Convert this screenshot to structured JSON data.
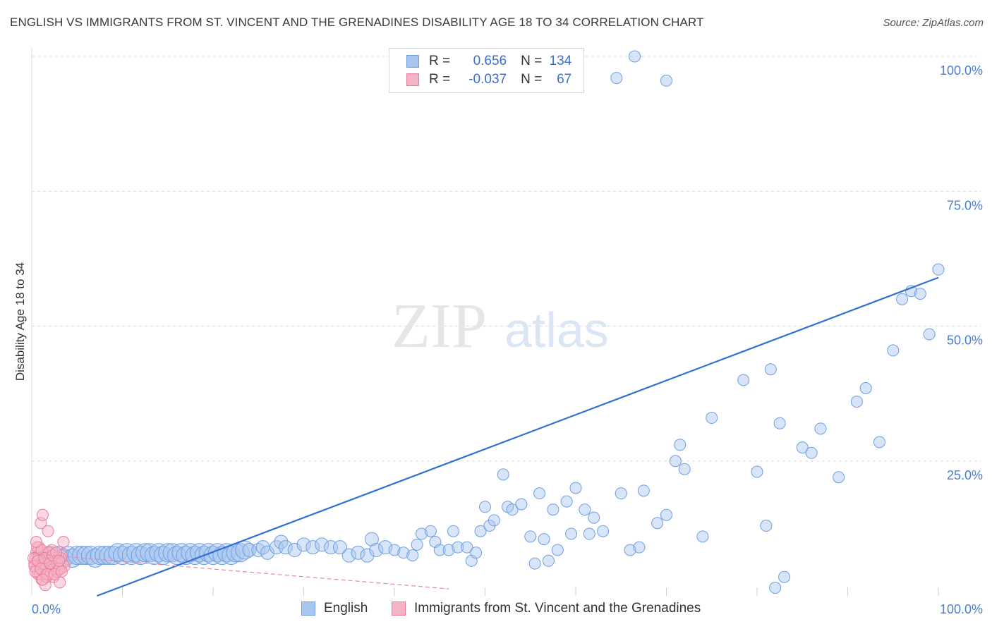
{
  "header": {
    "title": "ENGLISH VS IMMIGRANTS FROM ST. VINCENT AND THE GRENADINES DISABILITY AGE 18 TO 34 CORRELATION CHART",
    "source": "Source: ZipAtlas.com"
  },
  "watermark": {
    "zip": "ZIP",
    "atlas": "atlas"
  },
  "legend": {
    "rows": [
      {
        "r_label": "R =",
        "r_value": "0.656",
        "n_label": "N =",
        "n_value": "134"
      },
      {
        "r_label": "R =",
        "r_value": "-0.037",
        "n_label": "N =",
        "n_value": "67"
      }
    ]
  },
  "bottom_legend": {
    "english": "English",
    "immigrants": "Immigrants from St. Vincent and the Grenadines"
  },
  "colors": {
    "english_fill": "#a9c6f0",
    "english_stroke": "#6f9fe0",
    "english_line": "#3070d0",
    "immigrant_fill": "#f6b3c6",
    "immigrant_stroke": "#ea7da0",
    "immigrant_line": "#e08aa5",
    "tick_text": "#4a7fd0",
    "grid": "#dcdcdc"
  },
  "chart_data": {
    "type": "scatter",
    "title": "ENGLISH VS IMMIGRANTS FROM ST. VINCENT AND THE GRENADINES DISABILITY AGE 18 TO 34 CORRELATION CHART",
    "xlabel": "",
    "ylabel": "Disability Age 18 to 34",
    "xlim": [
      0,
      100
    ],
    "ylim": [
      0,
      100
    ],
    "x_tick_labels": [
      "0.0%",
      "100.0%"
    ],
    "y_tick_labels": [
      "25.0%",
      "50.0%",
      "75.0%",
      "100.0%"
    ],
    "y_ticks": [
      25,
      50,
      75,
      100
    ],
    "grid": true,
    "legend_placement": "top-center",
    "series": [
      {
        "name": "English",
        "r": 0.656,
        "n": 134,
        "trend": {
          "x": [
            7.2,
            100
          ],
          "y": [
            0,
            59
          ]
        },
        "points": [
          [
            1.5,
            7
          ],
          [
            2,
            7.5
          ],
          [
            2.5,
            7
          ],
          [
            3,
            7.5
          ],
          [
            3.5,
            7
          ],
          [
            4,
            7.5
          ],
          [
            4.5,
            7
          ],
          [
            5,
            7.5
          ],
          [
            5.5,
            7.5
          ],
          [
            6,
            7.5
          ],
          [
            6.5,
            7.5
          ],
          [
            7,
            7
          ],
          [
            7.5,
            7.5
          ],
          [
            8,
            7.5
          ],
          [
            8.5,
            7.5
          ],
          [
            9,
            7.5
          ],
          [
            9.5,
            8
          ],
          [
            10,
            7.5
          ],
          [
            10.5,
            8
          ],
          [
            11,
            7.5
          ],
          [
            11.5,
            8
          ],
          [
            12,
            7.5
          ],
          [
            12.5,
            8
          ],
          [
            13,
            8
          ],
          [
            13.5,
            7.5
          ],
          [
            14,
            8
          ],
          [
            14.5,
            7.5
          ],
          [
            15,
            8
          ],
          [
            15.5,
            8
          ],
          [
            16,
            7.5
          ],
          [
            16.5,
            8
          ],
          [
            17,
            7.5
          ],
          [
            17.5,
            8
          ],
          [
            18,
            7.5
          ],
          [
            18.5,
            8
          ],
          [
            19,
            7.5
          ],
          [
            19.5,
            8
          ],
          [
            20,
            7.5
          ],
          [
            20.5,
            8
          ],
          [
            21,
            7.5
          ],
          [
            21.5,
            8
          ],
          [
            22,
            7.5
          ],
          [
            22.5,
            8
          ],
          [
            23,
            8
          ],
          [
            23.5,
            8.5
          ],
          [
            24,
            8.5
          ],
          [
            25,
            8.5
          ],
          [
            25.5,
            9
          ],
          [
            26,
            8
          ],
          [
            27,
            9
          ],
          [
            27.5,
            10
          ],
          [
            28,
            9
          ],
          [
            29,
            8.5
          ],
          [
            30,
            9.5
          ],
          [
            31,
            9
          ],
          [
            32,
            9.5
          ],
          [
            33,
            9
          ],
          [
            34,
            9
          ],
          [
            35,
            7.5
          ],
          [
            36,
            8
          ],
          [
            37,
            7.5
          ],
          [
            37.5,
            10.5
          ],
          [
            38,
            8.5
          ],
          [
            39,
            9
          ],
          [
            40,
            8.5
          ],
          [
            41,
            8
          ],
          [
            42,
            7.5
          ],
          [
            42.5,
            9.5
          ],
          [
            43,
            11.5
          ],
          [
            44,
            12
          ],
          [
            44.5,
            10
          ],
          [
            45,
            8.5
          ],
          [
            46,
            8.5
          ],
          [
            46.5,
            12
          ],
          [
            47,
            9
          ],
          [
            48,
            9
          ],
          [
            48.5,
            6.5
          ],
          [
            49,
            8
          ],
          [
            49.5,
            12
          ],
          [
            50,
            16.5
          ],
          [
            50.5,
            13
          ],
          [
            51,
            14
          ],
          [
            52,
            22.5
          ],
          [
            52.5,
            16.5
          ],
          [
            53,
            16
          ],
          [
            54,
            17
          ],
          [
            55,
            11
          ],
          [
            55.5,
            6
          ],
          [
            56,
            19
          ],
          [
            56.5,
            10.5
          ],
          [
            57,
            6.5
          ],
          [
            57.5,
            16
          ],
          [
            58,
            8.5
          ],
          [
            59,
            17.5
          ],
          [
            59.5,
            11.5
          ],
          [
            60,
            20
          ],
          [
            61,
            16
          ],
          [
            61.5,
            11.5
          ],
          [
            62,
            14.5
          ],
          [
            63,
            12
          ],
          [
            65,
            19
          ],
          [
            66,
            8.5
          ],
          [
            67,
            9
          ],
          [
            67.5,
            19.5
          ],
          [
            69,
            13.5
          ],
          [
            70,
            15
          ],
          [
            71,
            25
          ],
          [
            72,
            23.5
          ],
          [
            74,
            11
          ],
          [
            75,
            33
          ],
          [
            78.5,
            40
          ],
          [
            80,
            23
          ],
          [
            81,
            13
          ],
          [
            81.5,
            42
          ],
          [
            82,
            1.5
          ],
          [
            82.5,
            32
          ],
          [
            83,
            3.5
          ],
          [
            85,
            27.5
          ],
          [
            86,
            26.5
          ],
          [
            87,
            31
          ],
          [
            89,
            22
          ],
          [
            91,
            36
          ],
          [
            92,
            38.5
          ],
          [
            93.5,
            28.5
          ],
          [
            95,
            45.5
          ],
          [
            96,
            55
          ],
          [
            97,
            56.5
          ],
          [
            98,
            56
          ],
          [
            99,
            48.5
          ],
          [
            100,
            60.5
          ],
          [
            71.5,
            28
          ],
          [
            64.5,
            96
          ],
          [
            66.5,
            100
          ],
          [
            70,
            95.5
          ]
        ]
      },
      {
        "name": "Immigrants from St. Vincent and the Grenadines",
        "r": -0.037,
        "n": 67,
        "trend": {
          "x": [
            0,
            46
          ],
          "y": [
            7.8,
            1.3
          ]
        },
        "points": [
          [
            0.3,
            6
          ],
          [
            0.4,
            7
          ],
          [
            0.5,
            5
          ],
          [
            0.5,
            8
          ],
          [
            0.6,
            6.5
          ],
          [
            0.7,
            4
          ],
          [
            0.8,
            7.5
          ],
          [
            0.8,
            9
          ],
          [
            0.9,
            5.5
          ],
          [
            1,
            6
          ],
          [
            1,
            13.5
          ],
          [
            1.1,
            3
          ],
          [
            1.2,
            7
          ],
          [
            1.2,
            15
          ],
          [
            1.3,
            4.5
          ],
          [
            1.4,
            8
          ],
          [
            1.5,
            6
          ],
          [
            1.5,
            2
          ],
          [
            1.6,
            5.5
          ],
          [
            1.7,
            7
          ],
          [
            1.8,
            12
          ],
          [
            1.9,
            6.5
          ],
          [
            2,
            4
          ],
          [
            2,
            7.5
          ],
          [
            2.1,
            5
          ],
          [
            2.2,
            8.5
          ],
          [
            2.3,
            6
          ],
          [
            2.4,
            3.5
          ],
          [
            2.5,
            7
          ],
          [
            2.6,
            5.5
          ],
          [
            2.7,
            6.5
          ],
          [
            2.8,
            4.5
          ],
          [
            2.9,
            7
          ],
          [
            3,
            6
          ],
          [
            3.1,
            2.5
          ],
          [
            3.2,
            5
          ],
          [
            3.3,
            7.5
          ],
          [
            3.4,
            6
          ],
          [
            3.5,
            10
          ],
          [
            3.6,
            5.5
          ],
          [
            0.2,
            7
          ],
          [
            0.3,
            5.5
          ],
          [
            0.6,
            9
          ],
          [
            0.9,
            4
          ],
          [
            1.1,
            8.5
          ],
          [
            1.3,
            6
          ],
          [
            1.6,
            3.5
          ],
          [
            1.9,
            8
          ],
          [
            2.1,
            6.5
          ],
          [
            2.4,
            5
          ],
          [
            2.6,
            7
          ],
          [
            2.8,
            6
          ],
          [
            3,
            5
          ],
          [
            3.2,
            7
          ],
          [
            0.4,
            4.5
          ],
          [
            0.7,
            6.5
          ],
          [
            1,
            5
          ],
          [
            1.4,
            7
          ],
          [
            1.7,
            4
          ],
          [
            2,
            6
          ],
          [
            2.3,
            7.5
          ],
          [
            2.5,
            4
          ],
          [
            2.7,
            8
          ],
          [
            3,
            6.5
          ],
          [
            3.3,
            4.5
          ],
          [
            0.5,
            10
          ],
          [
            1.2,
            3
          ]
        ]
      }
    ]
  }
}
